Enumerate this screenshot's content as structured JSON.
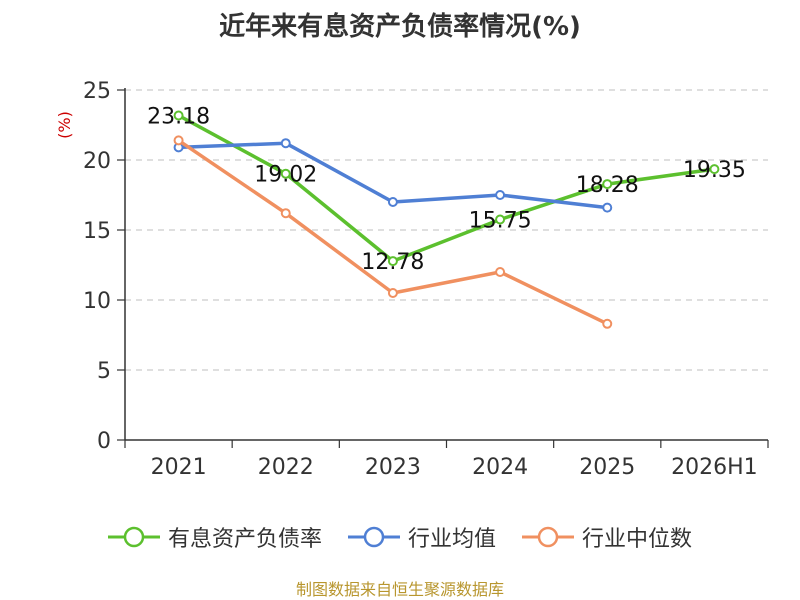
{
  "chart_data": {
    "type": "line",
    "title": "近年来有息资产负债率情况(%)",
    "ylabel": "(%)",
    "xlabel": "",
    "categories": [
      "2021",
      "2022",
      "2023",
      "2024",
      "2025",
      "2026H1"
    ],
    "ylim": [
      0,
      25
    ],
    "yticks": [
      0,
      5,
      10,
      15,
      20,
      25
    ],
    "grid": true,
    "legend_position": "bottom",
    "series": [
      {
        "name": "有息资产负债率",
        "color": "#5cc02e",
        "values": [
          23.18,
          19.02,
          12.78,
          15.75,
          18.28,
          19.35
        ],
        "data_labels": [
          "23.18",
          "19.02",
          "12.78",
          "15.75",
          "18.28",
          "19.35"
        ]
      },
      {
        "name": "行业均值",
        "color": "#4f7fd4",
        "values": [
          20.9,
          21.2,
          17.0,
          17.5,
          16.6,
          null
        ]
      },
      {
        "name": "行业中位数",
        "color": "#f09060",
        "values": [
          21.4,
          16.2,
          10.5,
          12.0,
          8.3,
          null
        ]
      }
    ]
  },
  "source_note": "制图数据来自恒生聚源数据库"
}
